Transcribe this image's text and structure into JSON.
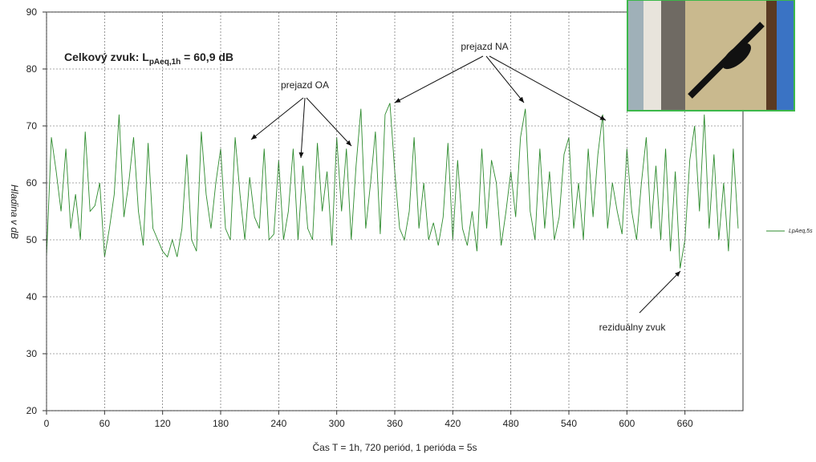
{
  "chart_data": {
    "type": "line",
    "title": "Celkový zvuk: L",
    "title_subscript": "pAeq,1h",
    "title_suffix": " = 60,9 dB",
    "annotations": [
      "prejazd OA",
      "prejazd NA",
      "reziduálny zvuk"
    ],
    "y_label": "Hladina v dB",
    "x_label": "Čas T = 1h, 720 periód, 1 perióda = 5s",
    "x": [
      0,
      5,
      10,
      15,
      20,
      25,
      30,
      35,
      40,
      45,
      50,
      55,
      60,
      65,
      70,
      75,
      80,
      85,
      90,
      95,
      100,
      105,
      110,
      115,
      120,
      125,
      130,
      135,
      140,
      145,
      150,
      155,
      160,
      165,
      170,
      175,
      180,
      185,
      190,
      195,
      200,
      205,
      210,
      215,
      220,
      225,
      230,
      235,
      240,
      245,
      250,
      255,
      260,
      265,
      270,
      275,
      280,
      285,
      290,
      295,
      300,
      305,
      310,
      315,
      320,
      325,
      330,
      335,
      340,
      345,
      350,
      355,
      360,
      365,
      370,
      375,
      380,
      385,
      390,
      395,
      400,
      405,
      410,
      415,
      420,
      425,
      430,
      435,
      440,
      445,
      450,
      455,
      460,
      465,
      470,
      475,
      480,
      485,
      490,
      495,
      500,
      505,
      510,
      515,
      520,
      525,
      530,
      535,
      540,
      545,
      550,
      555,
      560,
      565,
      570,
      575,
      580,
      585,
      590,
      595,
      600,
      605,
      610,
      615,
      620,
      625,
      630,
      635,
      640,
      645,
      650,
      655,
      660,
      665,
      670,
      675,
      680,
      685,
      690,
      695,
      700,
      705,
      710,
      715
    ],
    "series": [
      {
        "name": "LpAeq,5s",
        "color": "#2e8b2e",
        "values": [
          47,
          68,
          62,
          55,
          66,
          52,
          58,
          50,
          69,
          55,
          56,
          60,
          47,
          52,
          58,
          72,
          54,
          60,
          68,
          55,
          49,
          67,
          52,
          50,
          48,
          47,
          50,
          47,
          52,
          65,
          50,
          48,
          69,
          58,
          52,
          60,
          66,
          52,
          50,
          68,
          58,
          50,
          61,
          54,
          52,
          66,
          50,
          51,
          64,
          50,
          55,
          66,
          50,
          63,
          52,
          50,
          67,
          55,
          62,
          49,
          68,
          55,
          66,
          50,
          63,
          73,
          52,
          60,
          69,
          51,
          72,
          74,
          62,
          52,
          50,
          55,
          68,
          52,
          60,
          50,
          53,
          49,
          54,
          67,
          50,
          64,
          52,
          49,
          55,
          48,
          66,
          52,
          64,
          60,
          49,
          55,
          62,
          54,
          68,
          73,
          55,
          50,
          66,
          52,
          62,
          50,
          54,
          65,
          68,
          52,
          60,
          50,
          66,
          54,
          65,
          72,
          52,
          60,
          55,
          51,
          66,
          55,
          50,
          60,
          68,
          52,
          63,
          50,
          66,
          48,
          62,
          45,
          50,
          64,
          70,
          55,
          72,
          52,
          65,
          50,
          60,
          48,
          66,
          52
        ]
      }
    ],
    "xlim": [
      0,
      720
    ],
    "ylim": [
      20,
      90
    ],
    "xticks": [
      0,
      60,
      120,
      180,
      240,
      300,
      360,
      420,
      480,
      540,
      600,
      660
    ],
    "yticks": [
      20,
      30,
      40,
      50,
      60,
      70,
      80,
      90
    ],
    "grid": true,
    "legend": "right"
  }
}
